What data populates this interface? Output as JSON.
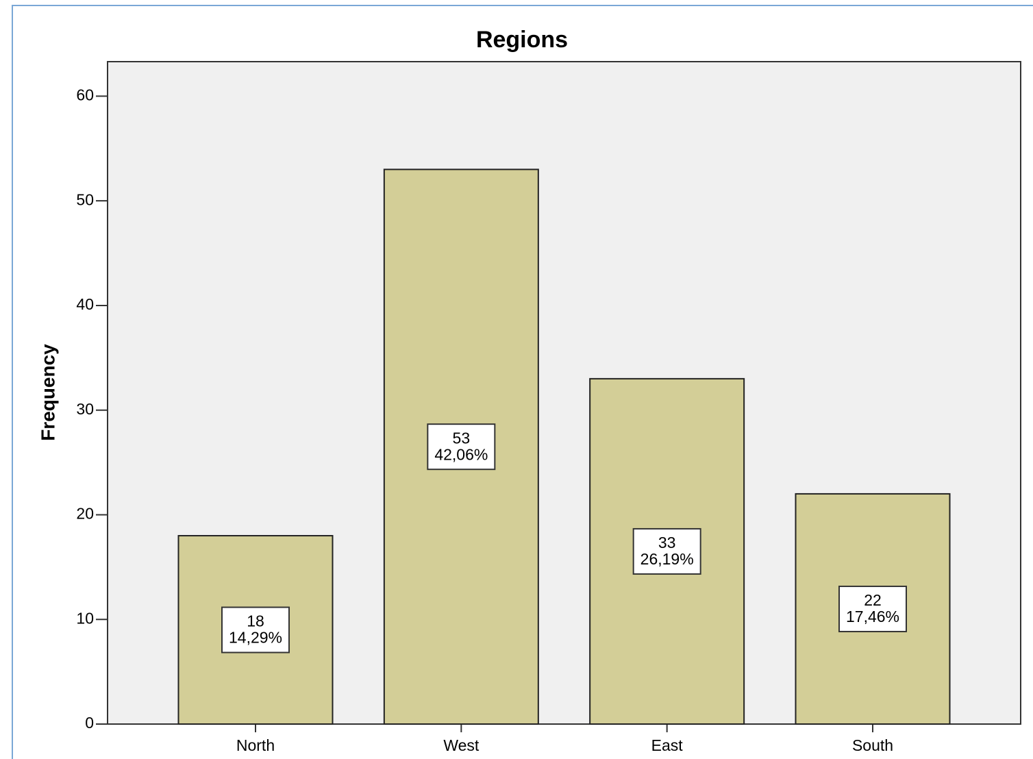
{
  "chart_data": {
    "type": "bar",
    "title": "Regions",
    "y_label": "Frequency",
    "categories": [
      "North",
      "West",
      "East",
      "South"
    ],
    "values": [
      18,
      53,
      33,
      22
    ],
    "percents": [
      14.29,
      42.06,
      26.19,
      17.46
    ],
    "percent_labels": [
      "14,29%",
      "42,06%",
      "26,19%",
      "17,46%"
    ],
    "color": "#d3ce97",
    "ylim": [
      0,
      63.3
    ],
    "yticks": [
      0,
      10,
      20,
      30,
      40,
      50,
      60
    ],
    "grid": false
  }
}
